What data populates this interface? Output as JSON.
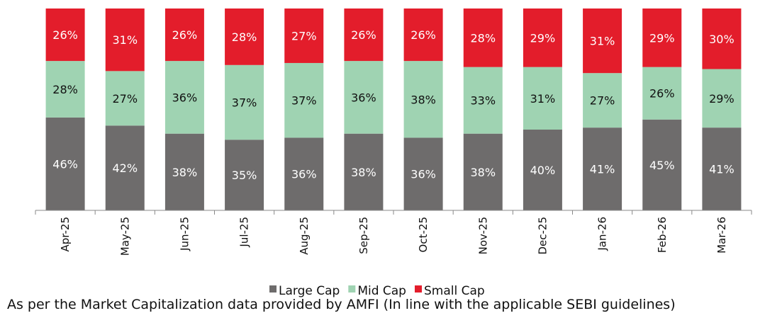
{
  "chart_data": {
    "type": "bar",
    "stacked": true,
    "percent_stacked": true,
    "categories": [
      "Apr-25",
      "May-25",
      "Jun-25",
      "Jul-25",
      "Aug-25",
      "Sep-25",
      "Oct-25",
      "Nov-25",
      "Dec-25",
      "Jan-26",
      "Feb-26",
      "Mar-26"
    ],
    "series": [
      {
        "name": "Large Cap",
        "color": "#6e6c6c",
        "label_color": "#ffffff",
        "values": [
          46,
          42,
          38,
          35,
          36,
          38,
          36,
          38,
          40,
          41,
          45,
          41
        ]
      },
      {
        "name": "Mid Cap",
        "color": "#9fd3b2",
        "label_color": "#111111",
        "values": [
          28,
          27,
          36,
          37,
          37,
          36,
          38,
          33,
          31,
          27,
          26,
          29
        ]
      },
      {
        "name": "Small Cap",
        "color": "#e31d2b",
        "label_color": "#ffffff",
        "values": [
          26,
          31,
          26,
          28,
          27,
          26,
          26,
          28,
          29,
          31,
          29,
          30
        ]
      }
    ],
    "ylim": [
      0,
      100
    ],
    "value_suffix": "%",
    "legend_position": "bottom",
    "grid": false,
    "title": "",
    "xlabel": "",
    "ylabel": ""
  },
  "caption": "As per the Market Capitalization data provided by AMFI (In line with the applicable SEBI guidelines)"
}
